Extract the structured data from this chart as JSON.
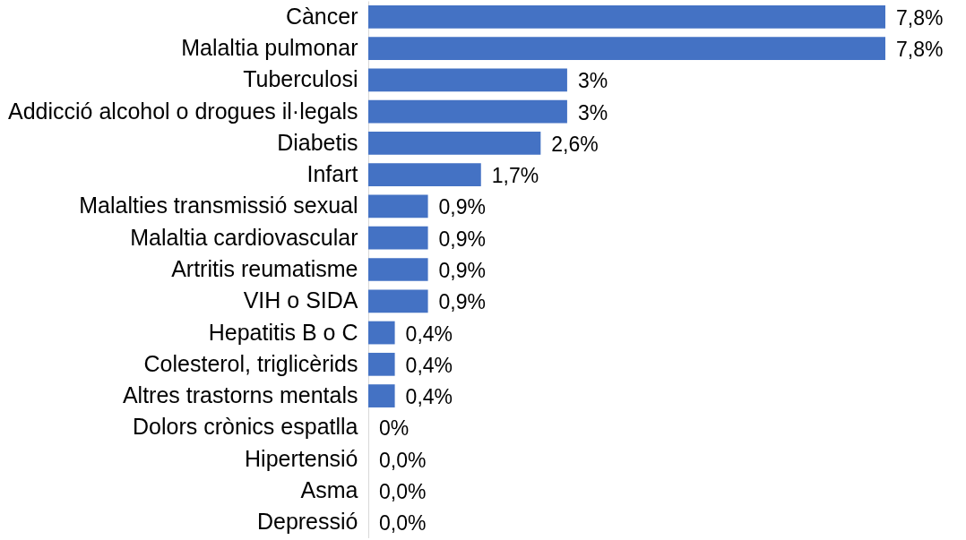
{
  "chart_data": {
    "type": "bar",
    "orientation": "horizontal",
    "categories": [
      "Càncer",
      "Malaltia pulmonar",
      "Tuberculosi",
      "Addicció alcohol o drogues il·legals",
      "Diabetis",
      "Infart",
      "Malalties transmissió sexual",
      "Malaltia cardiovascular",
      "Artritis reumatisme",
      "VIH o SIDA",
      "Hepatitis B o C",
      "Colesterol, triglicèrids",
      "Altres trastorns mentals",
      "Dolors crònics espatlla",
      "Hipertensió",
      "Asma",
      "Depressió"
    ],
    "values": [
      7.8,
      7.8,
      3,
      3,
      2.6,
      1.7,
      0.9,
      0.9,
      0.9,
      0.9,
      0.4,
      0.4,
      0.4,
      0,
      0,
      0,
      0
    ],
    "value_labels": [
      "7,8%",
      "7,8%",
      "3%",
      "3%",
      "2,6%",
      "1,7%",
      "0,9%",
      "0,9%",
      "0,9%",
      "0,9%",
      "0,4%",
      "0,4%",
      "0,4%",
      "0%",
      "0,0%",
      "0,0%",
      "0,0%"
    ],
    "color": "#4472c4",
    "grid": false
  }
}
